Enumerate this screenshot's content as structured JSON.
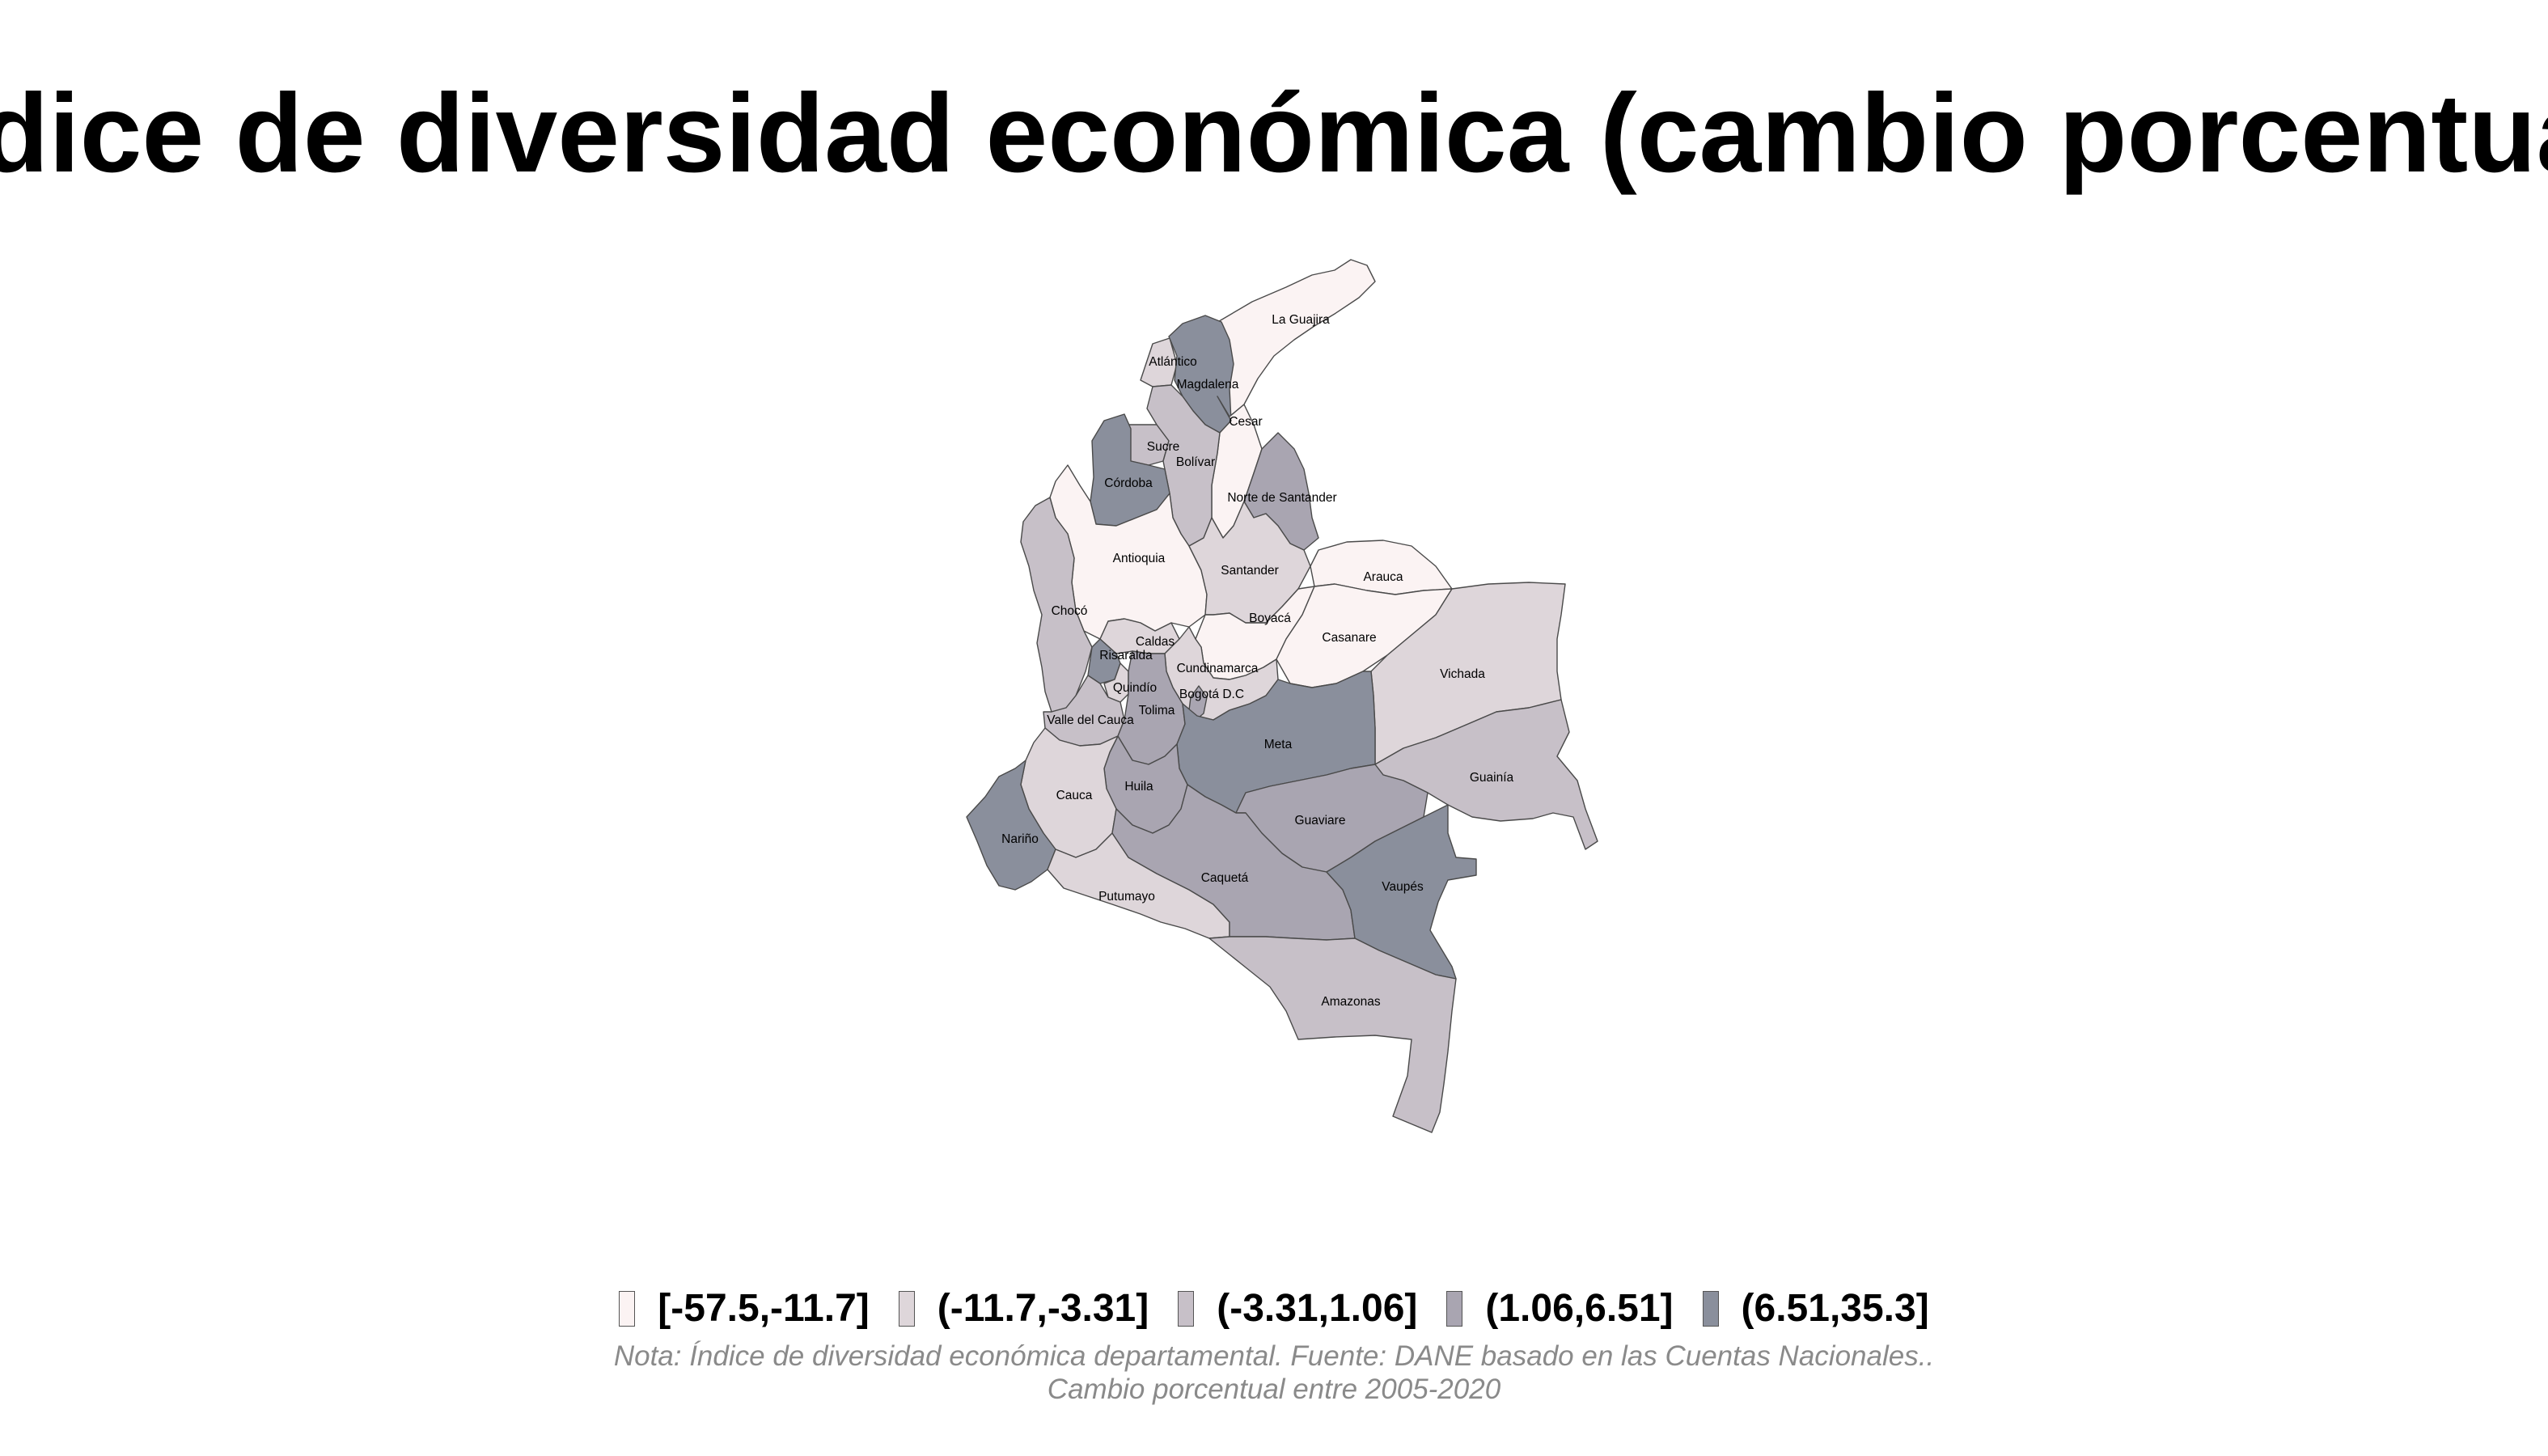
{
  "title": "Índice de diversidad económica (cambio porcentual)",
  "legend": [
    {
      "label": "[-57.5,-11.7]",
      "color": "#fbf3f3"
    },
    {
      "label": "(-11.7,-3.31]",
      "color": "#ded6da"
    },
    {
      "label": "(-3.31,1.06]",
      "color": "#c7c0c8"
    },
    {
      "label": "(1.06,6.51]",
      "color": "#a9a5b1"
    },
    {
      "label": "(6.51,35.3]",
      "color": "#8a8f9c"
    }
  ],
  "note_line1": "Nota: Índice de diversidad económica departamental. Fuente: DANE basado en las Cuentas Nacionales..",
  "note_line2": "Cambio porcentual entre 2005-2020",
  "departments": [
    {
      "name": "La Guajira",
      "class": 0
    },
    {
      "name": "Atlántico",
      "class": 1
    },
    {
      "name": "Magdalena",
      "class": 4
    },
    {
      "name": "Cesar",
      "class": 0
    },
    {
      "name": "Sucre",
      "class": 2
    },
    {
      "name": "Bolívar",
      "class": 2
    },
    {
      "name": "Córdoba",
      "class": 4
    },
    {
      "name": "Norte de Santander",
      "class": 3
    },
    {
      "name": "Antioquia",
      "class": 0
    },
    {
      "name": "Santander",
      "class": 1
    },
    {
      "name": "Arauca",
      "class": 0
    },
    {
      "name": "Chocó",
      "class": 2
    },
    {
      "name": "Boyacá",
      "class": 0
    },
    {
      "name": "Casanare",
      "class": 0
    },
    {
      "name": "Caldas",
      "class": 1
    },
    {
      "name": "Risaralda",
      "class": 4
    },
    {
      "name": "Cundinamarca",
      "class": 1
    },
    {
      "name": "Vichada",
      "class": 1
    },
    {
      "name": "Quindío",
      "class": 1
    },
    {
      "name": "Bogotá D.C",
      "class": 3
    },
    {
      "name": "Valle del Cauca",
      "class": 2
    },
    {
      "name": "Tolima",
      "class": 3
    },
    {
      "name": "Meta",
      "class": 4
    },
    {
      "name": "Guainía",
      "class": 2
    },
    {
      "name": "Huila",
      "class": 3
    },
    {
      "name": "Cauca",
      "class": 1
    },
    {
      "name": "Nariño",
      "class": 4
    },
    {
      "name": "Guaviare",
      "class": 3
    },
    {
      "name": "Putumayo",
      "class": 1
    },
    {
      "name": "Caquetá",
      "class": 3
    },
    {
      "name": "Vaupés",
      "class": 4
    },
    {
      "name": "Amazonas",
      "class": 2
    }
  ]
}
